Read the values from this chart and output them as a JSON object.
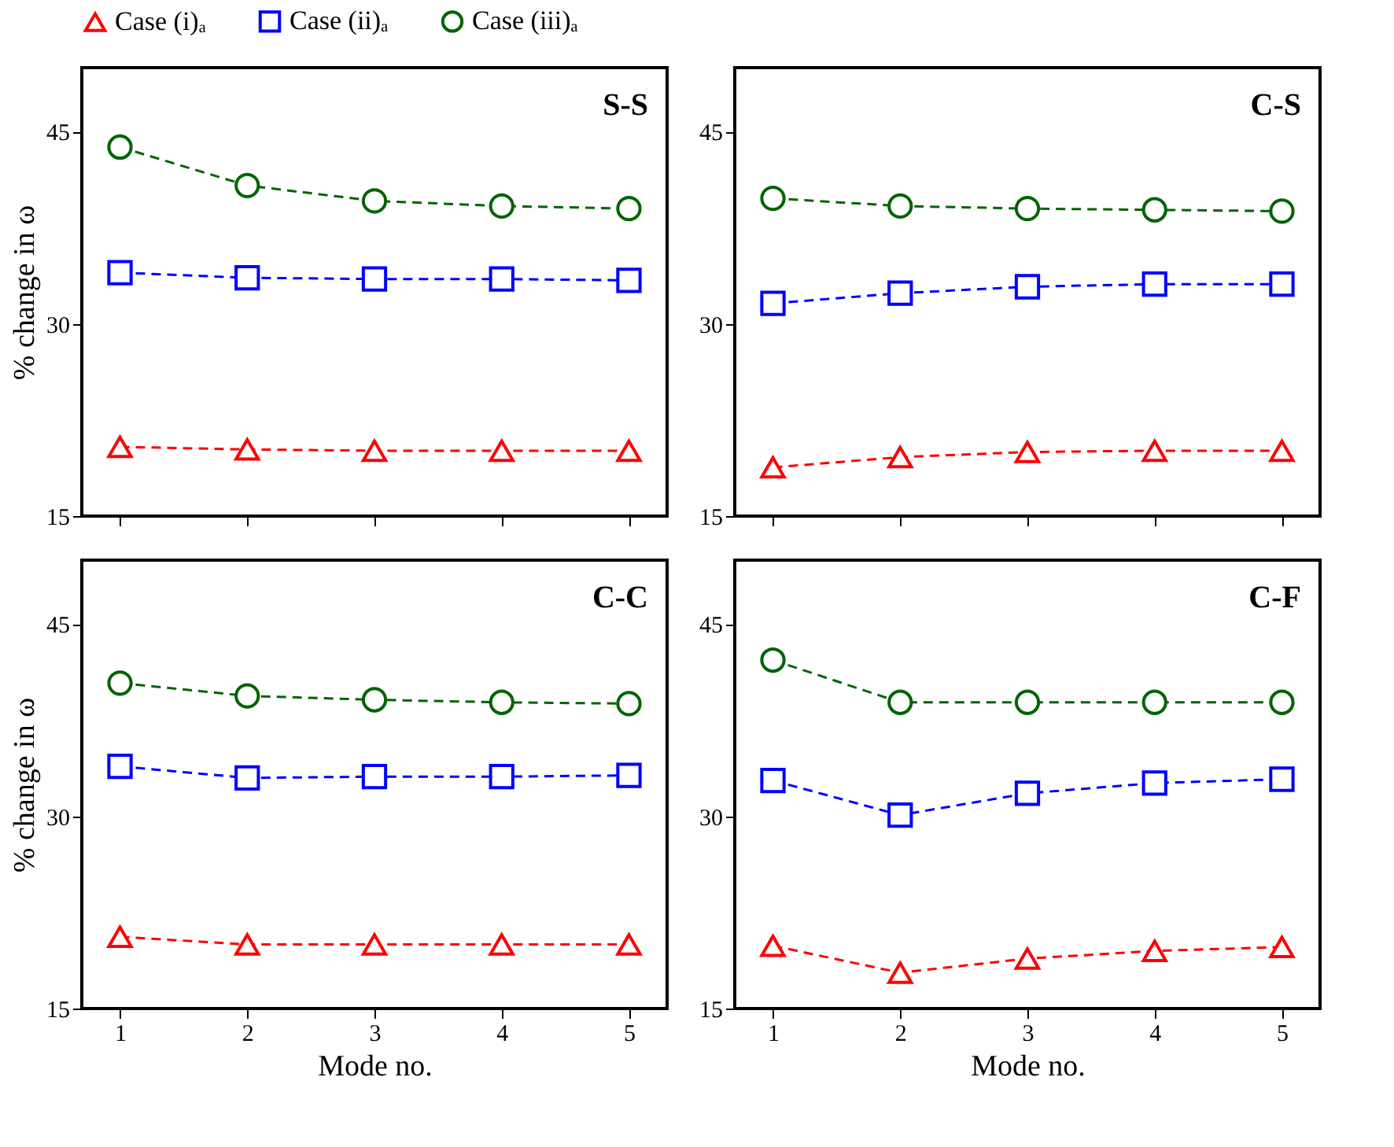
{
  "chart_data": [
    {
      "type": "line",
      "title": "S-S",
      "ylabel": "% change in ω",
      "x": [
        1,
        2,
        3,
        4,
        5
      ],
      "xlim": [
        0.7,
        5.3
      ],
      "xticks": [
        1,
        2,
        3,
        4,
        5
      ],
      "ylim": [
        15,
        50
      ],
      "yticks": [
        15,
        30,
        45
      ],
      "tick_labels": "y",
      "legend": "top",
      "grid": false,
      "line_style": "dashed",
      "series": [
        {
          "name": "Case (i)ₐ",
          "color": "#ff0000",
          "marker": "triangle",
          "values": [
            20.4,
            20.2,
            20.1,
            20.1,
            20.1
          ]
        },
        {
          "name": "Case (ii)ₐ",
          "color": "#0000ff",
          "marker": "square",
          "values": [
            34.0,
            33.6,
            33.5,
            33.5,
            33.4
          ]
        },
        {
          "name": "Case (iii)ₐ",
          "color": "#006400",
          "marker": "circle",
          "values": [
            43.8,
            40.8,
            39.6,
            39.2,
            39.0
          ]
        }
      ]
    },
    {
      "type": "line",
      "title": "C-S",
      "x": [
        1,
        2,
        3,
        4,
        5
      ],
      "xlim": [
        0.7,
        5.3
      ],
      "xticks": [
        1,
        2,
        3,
        4,
        5
      ],
      "ylim": [
        15,
        50
      ],
      "yticks": [
        15,
        30,
        45
      ],
      "tick_labels": "y",
      "legend": false,
      "grid": false,
      "line_style": "dashed",
      "series": [
        {
          "name": "Case (i)ₐ",
          "color": "#ff0000",
          "marker": "triangle",
          "values": [
            18.8,
            19.6,
            20.0,
            20.1,
            20.1
          ]
        },
        {
          "name": "Case (ii)ₐ",
          "color": "#0000ff",
          "marker": "square",
          "values": [
            31.6,
            32.4,
            32.9,
            33.1,
            33.1
          ]
        },
        {
          "name": "Case (iii)ₐ",
          "color": "#006400",
          "marker": "circle",
          "values": [
            39.8,
            39.2,
            39.0,
            38.9,
            38.8
          ]
        }
      ]
    },
    {
      "type": "line",
      "title": "C-C",
      "xlabel": "Mode no.",
      "ylabel": "% change in ω",
      "x": [
        1,
        2,
        3,
        4,
        5
      ],
      "xlim": [
        0.7,
        5.3
      ],
      "xticks": [
        1,
        2,
        3,
        4,
        5
      ],
      "ylim": [
        15,
        50
      ],
      "yticks": [
        15,
        30,
        45
      ],
      "legend": false,
      "grid": false,
      "line_style": "dashed",
      "series": [
        {
          "name": "Case (i)ₐ",
          "color": "#ff0000",
          "marker": "triangle",
          "values": [
            20.6,
            20.0,
            20.0,
            20.0,
            20.0
          ]
        },
        {
          "name": "Case (ii)ₐ",
          "color": "#0000ff",
          "marker": "square",
          "values": [
            33.9,
            33.0,
            33.1,
            33.1,
            33.2
          ]
        },
        {
          "name": "Case (iii)ₐ",
          "color": "#006400",
          "marker": "circle",
          "values": [
            40.4,
            39.4,
            39.1,
            38.9,
            38.8
          ]
        }
      ]
    },
    {
      "type": "line",
      "title": "C-F",
      "xlabel": "Mode no.",
      "x": [
        1,
        2,
        3,
        4,
        5
      ],
      "xlim": [
        0.7,
        5.3
      ],
      "xticks": [
        1,
        2,
        3,
        4,
        5
      ],
      "ylim": [
        15,
        50
      ],
      "yticks": [
        15,
        30,
        45
      ],
      "legend": false,
      "grid": false,
      "line_style": "dashed",
      "series": [
        {
          "name": "Case (i)ₐ",
          "color": "#ff0000",
          "marker": "triangle",
          "values": [
            19.9,
            17.8,
            18.9,
            19.5,
            19.8
          ]
        },
        {
          "name": "Case (ii)ₐ",
          "color": "#0000ff",
          "marker": "square",
          "values": [
            32.8,
            30.1,
            31.8,
            32.6,
            32.9
          ]
        },
        {
          "name": "Case (iii)ₐ",
          "color": "#006400",
          "marker": "circle",
          "values": [
            42.2,
            38.9,
            38.9,
            38.9,
            38.9
          ]
        }
      ]
    }
  ]
}
